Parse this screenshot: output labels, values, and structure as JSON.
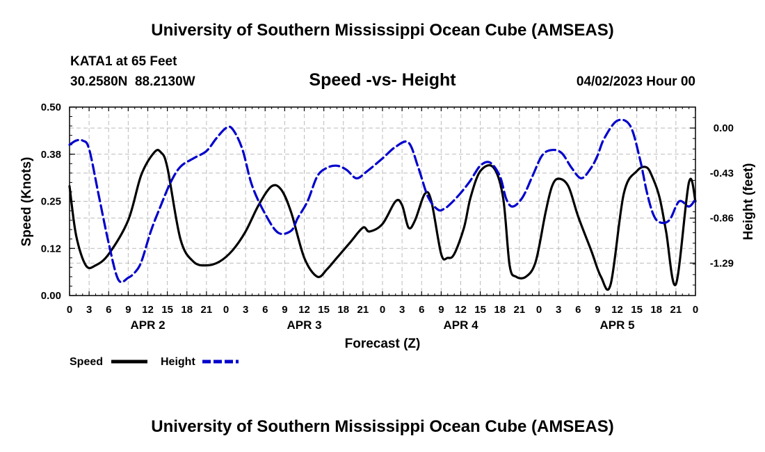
{
  "header": {
    "title": "University of Southern Mississippi Ocean Cube (AMSEAS)",
    "station": "KATA1 at 65 Feet",
    "coords": "30.2580N  88.2130W",
    "subtitle": "Speed -vs- Height",
    "date": "04/02/2023 Hour 00"
  },
  "footer": {
    "title": "University of Southern Mississippi Ocean Cube (AMSEAS)"
  },
  "colors": {
    "speed": "#000000",
    "height": "#0000cc",
    "grid": "#bbbbbb"
  },
  "chart_data": {
    "type": "line",
    "title": "Speed -vs- Height",
    "xlabel": "Forecast (Z)",
    "ylabel": "Speed (Knots)",
    "y2label": "Height (feet)",
    "x_range_hours": [
      0,
      96
    ],
    "ylim": [
      0,
      0.5
    ],
    "y2lim": [
      -1.6,
      0.2
    ],
    "yticks": [
      "0.00",
      "0.12",
      "0.25",
      "0.38",
      "0.50"
    ],
    "ytick_values": [
      0,
      0.125,
      0.25,
      0.375,
      0.5
    ],
    "y2ticks": [
      "0.00",
      "-0.43",
      "-0.86",
      "-1.29"
    ],
    "y2tick_values": [
      0,
      -0.43,
      -0.86,
      -1.29
    ],
    "xtick_labels": [
      "0",
      "3",
      "6",
      "9",
      "12",
      "15",
      "18",
      "21",
      "0",
      "3",
      "6",
      "9",
      "12",
      "15",
      "18",
      "21",
      "0",
      "3",
      "6",
      "9",
      "12",
      "15",
      "18",
      "21",
      "0",
      "3",
      "6",
      "9",
      "12",
      "15",
      "18",
      "21",
      "0"
    ],
    "day_labels": [
      {
        "label": "APR 2",
        "hour": 12
      },
      {
        "label": "APR 3",
        "hour": 36
      },
      {
        "label": "APR 4",
        "hour": 60
      },
      {
        "label": "APR 5",
        "hour": 84
      }
    ],
    "legend": [
      {
        "name": "Speed",
        "style": "solid"
      },
      {
        "name": "Height",
        "style": "dashed"
      }
    ],
    "series": [
      {
        "name": "Speed",
        "axis": "left",
        "hours": [
          0,
          1,
          2.5,
          4,
          6,
          9,
          11,
          13,
          14,
          15,
          17,
          19,
          21,
          23,
          25,
          27,
          29,
          31,
          32.5,
          34,
          36,
          38,
          39.5,
          41,
          43,
          45,
          46,
          48,
          50,
          51,
          52,
          53,
          54.5,
          55.5,
          57,
          58,
          59,
          60.5,
          61.5,
          63,
          65,
          66.5,
          67.5,
          68.5,
          70,
          71.5,
          73,
          74,
          75,
          76.5,
          78,
          80,
          81.5,
          83,
          85,
          87,
          88.5,
          89.5,
          90.5,
          91.5,
          93,
          95,
          96
        ],
        "values": [
          0.29,
          0.16,
          0.08,
          0.08,
          0.11,
          0.2,
          0.32,
          0.38,
          0.38,
          0.34,
          0.15,
          0.09,
          0.08,
          0.09,
          0.12,
          0.17,
          0.24,
          0.29,
          0.28,
          0.22,
          0.1,
          0.05,
          0.07,
          0.1,
          0.14,
          0.18,
          0.17,
          0.19,
          0.25,
          0.24,
          0.18,
          0.2,
          0.27,
          0.25,
          0.11,
          0.1,
          0.11,
          0.18,
          0.26,
          0.33,
          0.34,
          0.26,
          0.08,
          0.05,
          0.05,
          0.09,
          0.22,
          0.29,
          0.31,
          0.29,
          0.21,
          0.12,
          0.05,
          0.03,
          0.27,
          0.33,
          0.34,
          0.31,
          0.26,
          0.17,
          0.03,
          0.3,
          0.25
        ]
      },
      {
        "name": "Height",
        "axis": "right",
        "hours": [
          0,
          1,
          2,
          3,
          4.5,
          6,
          7.5,
          9,
          10,
          11,
          12.5,
          14,
          15.5,
          17,
          19,
          21,
          22.5,
          24,
          25,
          26.5,
          28,
          30,
          32,
          34,
          35,
          36.5,
          38,
          39.5,
          41,
          42.5,
          44,
          45.5,
          48,
          50,
          52,
          53.5,
          55,
          56.5,
          57.5,
          58.5,
          60,
          61.5,
          63,
          64.5,
          66,
          67,
          68,
          69.5,
          71,
          72.5,
          74,
          75.5,
          77,
          78.5,
          80,
          81,
          82,
          84,
          86,
          87.5,
          88.5,
          89.5,
          90.5,
          92,
          93.5,
          95,
          96
        ],
        "values": [
          -0.16,
          -0.12,
          -0.12,
          -0.2,
          -0.65,
          -1.1,
          -1.45,
          -1.43,
          -1.38,
          -1.28,
          -0.98,
          -0.74,
          -0.52,
          -0.37,
          -0.29,
          -0.22,
          -0.1,
          0.0,
          -0.01,
          -0.2,
          -0.55,
          -0.82,
          -1.0,
          -0.98,
          -0.86,
          -0.7,
          -0.46,
          -0.38,
          -0.36,
          -0.4,
          -0.48,
          -0.42,
          -0.29,
          -0.18,
          -0.14,
          -0.38,
          -0.66,
          -0.78,
          -0.77,
          -0.72,
          -0.62,
          -0.5,
          -0.36,
          -0.33,
          -0.46,
          -0.68,
          -0.75,
          -0.66,
          -0.46,
          -0.26,
          -0.21,
          -0.24,
          -0.38,
          -0.48,
          -0.38,
          -0.26,
          -0.1,
          0.07,
          0.02,
          -0.3,
          -0.6,
          -0.82,
          -0.9,
          -0.88,
          -0.7,
          -0.75,
          -0.68
        ]
      }
    ]
  }
}
